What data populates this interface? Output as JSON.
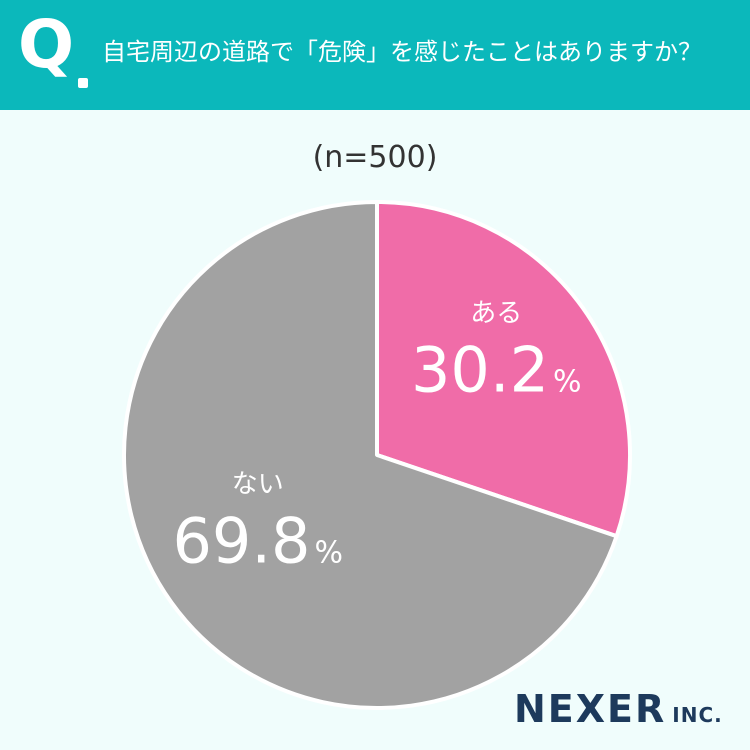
{
  "header": {
    "q_label": "Q",
    "question": "自宅周辺の道路で「危険」を感じたことはありますか？"
  },
  "sample_size": "(n=500)",
  "chart_data": {
    "type": "pie",
    "title": "",
    "categories": [
      "ある",
      "ない"
    ],
    "values": [
      30.2,
      69.8
    ],
    "value_labels": [
      "30.2",
      "69.8"
    ],
    "unit": "%",
    "colors": [
      "#f06ca8",
      "#a2a2a2"
    ]
  },
  "brand": {
    "name": "NEXER",
    "suffix": "INC."
  }
}
